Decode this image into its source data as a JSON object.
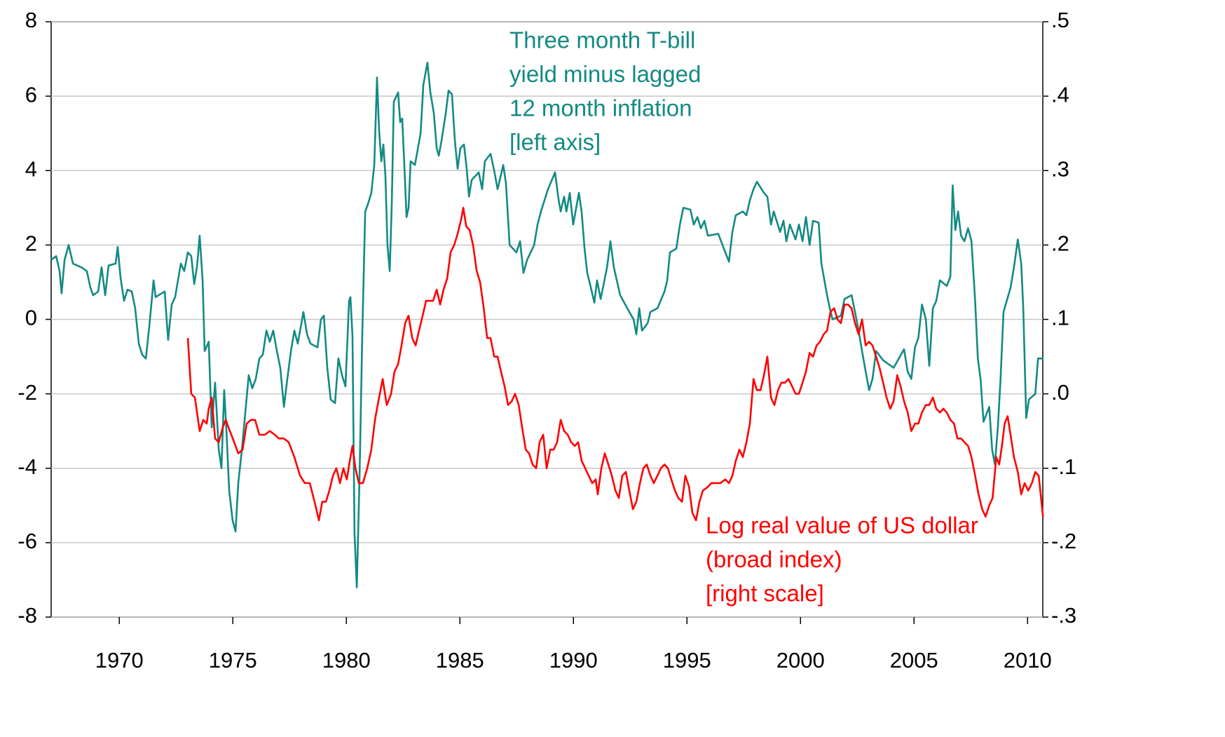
{
  "chart_data": {
    "type": "line",
    "xlim": [
      1967,
      2010.67
    ],
    "xticks": [
      1970,
      1975,
      1980,
      1985,
      1990,
      1995,
      2000,
      2005,
      2010
    ],
    "ylim": [
      -8,
      8
    ],
    "yticks": [
      -8,
      -6,
      -4,
      -2,
      0,
      2,
      4,
      6,
      8
    ],
    "y2lim": [
      -0.3,
      0.5
    ],
    "y2ticks": [
      {
        "value": -0.3,
        "label": "-.3"
      },
      {
        "value": -0.2,
        "label": "-.2"
      },
      {
        "value": -0.1,
        "label": "-.1"
      },
      {
        "value": 0.0,
        "label": ".0"
      },
      {
        "value": 0.1,
        "label": ".1"
      },
      {
        "value": 0.2,
        "label": ".2"
      },
      {
        "value": 0.3,
        "label": ".3"
      },
      {
        "value": 0.4,
        "label": ".4"
      },
      {
        "value": 0.5,
        "label": ".5"
      }
    ],
    "grid": true,
    "annotations": [
      {
        "lines": [
          "Three month T-bill",
          "yield minus lagged",
          "12 month inflation",
          "[left axis]"
        ],
        "color": "#138a84"
      },
      {
        "lines": [
          "Log real value of US dollar",
          "(broad index)",
          "[right scale]"
        ],
        "color": "#ff0000"
      }
    ],
    "series": [
      {
        "color": "#138a84",
        "axis": "y",
        "x": [
          1967.0,
          1967.22,
          1967.37,
          1967.46,
          1967.59,
          1967.77,
          1967.96,
          1968.33,
          1968.57,
          1968.73,
          1968.85,
          1969.07,
          1969.22,
          1969.38,
          1969.53,
          1969.84,
          1969.93,
          1970.06,
          1970.21,
          1970.36,
          1970.55,
          1970.7,
          1970.86,
          1971.01,
          1971.17,
          1971.32,
          1971.51,
          1971.6,
          1972.0,
          1972.15,
          1972.31,
          1972.46,
          1972.71,
          1972.86,
          1973.02,
          1973.17,
          1973.3,
          1973.42,
          1973.54,
          1973.67,
          1973.76,
          1973.94,
          1974.07,
          1974.22,
          1974.38,
          1974.5,
          1974.62,
          1974.72,
          1974.84,
          1974.99,
          1975.12,
          1975.24,
          1975.4,
          1975.55,
          1975.7,
          1975.86,
          1976.01,
          1976.17,
          1976.32,
          1976.48,
          1976.63,
          1976.78,
          1976.94,
          1977.09,
          1977.25,
          1977.4,
          1977.56,
          1977.71,
          1977.86,
          1978.11,
          1978.27,
          1978.42,
          1978.73,
          1978.88,
          1979.01,
          1979.16,
          1979.31,
          1979.5,
          1979.65,
          1979.81,
          1979.96,
          1980.12,
          1980.18,
          1980.27,
          1980.36,
          1980.46,
          1980.58,
          1980.7,
          1980.83,
          1980.95,
          1981.1,
          1981.23,
          1981.35,
          1981.44,
          1981.54,
          1981.63,
          1981.72,
          1981.81,
          1981.91,
          1982.0,
          1982.09,
          1982.28,
          1982.37,
          1982.46,
          1982.56,
          1982.65,
          1982.74,
          1982.83,
          1983.02,
          1983.27,
          1983.39,
          1983.57,
          1983.7,
          1983.85,
          1983.98,
          1984.07,
          1984.19,
          1984.38,
          1984.5,
          1984.65,
          1984.78,
          1984.9,
          1985.02,
          1985.18,
          1985.3,
          1985.4,
          1985.52,
          1985.83,
          1985.98,
          1986.1,
          1986.35,
          1986.51,
          1986.66,
          1986.91,
          1987.03,
          1987.19,
          1987.49,
          1987.65,
          1987.8,
          1987.96,
          1988.27,
          1988.42,
          1988.57,
          1988.88,
          1989.19,
          1989.35,
          1989.44,
          1989.59,
          1989.69,
          1989.84,
          1989.99,
          1990.24,
          1990.36,
          1990.49,
          1990.61,
          1990.77,
          1990.92,
          1991.04,
          1991.2,
          1991.48,
          1991.63,
          1991.78,
          1991.91,
          1992.06,
          1992.37,
          1992.65,
          1992.77,
          1992.9,
          1993.02,
          1993.27,
          1993.39,
          1993.7,
          1994.01,
          1994.13,
          1994.25,
          1994.53,
          1994.69,
          1994.84,
          1995.15,
          1995.3,
          1995.46,
          1995.61,
          1995.77,
          1995.92,
          1996.38,
          1996.69,
          1996.85,
          1997.0,
          1997.15,
          1997.46,
          1997.62,
          1997.77,
          1997.93,
          1998.08,
          1998.39,
          1998.54,
          1998.7,
          1998.82,
          1999.1,
          1999.25,
          1999.38,
          1999.53,
          1999.78,
          1999.93,
          2000.09,
          2000.24,
          2000.4,
          2000.55,
          2000.8,
          2000.92,
          2001.17,
          2001.29,
          2001.41,
          2001.78,
          2001.94,
          2002.25,
          2002.4,
          2002.56,
          2002.71,
          2002.87,
          2003.02,
          2003.17,
          2003.33,
          2003.64,
          2004.1,
          2004.56,
          2004.72,
          2004.88,
          2005.04,
          2005.19,
          2005.35,
          2005.52,
          2005.67,
          2005.83,
          2005.98,
          2006.14,
          2006.44,
          2006.6,
          2006.7,
          2006.82,
          2006.94,
          2007.07,
          2007.22,
          2007.38,
          2007.53,
          2007.69,
          2007.81,
          2007.93,
          2008.06,
          2008.31,
          2008.44,
          2008.56,
          2008.69,
          2008.81,
          2008.94,
          2009.25,
          2009.4,
          2009.57,
          2009.72,
          2009.81,
          2009.94,
          2010.06,
          2010.34,
          2010.46,
          2010.68
        ],
        "values": [
          1.6,
          1.7,
          1.3,
          0.7,
          1.6,
          2.0,
          1.5,
          1.4,
          1.3,
          0.85,
          0.65,
          0.75,
          1.4,
          0.65,
          1.45,
          1.5,
          1.95,
          1.1,
          0.5,
          0.8,
          0.75,
          0.3,
          -0.65,
          -0.95,
          -1.05,
          -0.2,
          1.05,
          0.6,
          0.75,
          -0.55,
          0.4,
          0.6,
          1.5,
          1.3,
          1.8,
          1.7,
          0.95,
          1.4,
          2.25,
          1.05,
          -0.85,
          -0.6,
          -2.9,
          -1.7,
          -3.5,
          -4.0,
          -1.9,
          -3.0,
          -4.6,
          -5.4,
          -5.7,
          -4.4,
          -3.5,
          -2.5,
          -1.5,
          -1.85,
          -1.6,
          -1.05,
          -0.95,
          -0.3,
          -0.6,
          -0.3,
          -0.85,
          -1.3,
          -2.35,
          -1.6,
          -0.85,
          -0.3,
          -0.65,
          0.2,
          -0.4,
          -0.65,
          -0.75,
          0.0,
          0.1,
          -1.3,
          -2.15,
          -2.25,
          -1.05,
          -1.5,
          -1.8,
          0.5,
          0.6,
          -0.45,
          -5.75,
          -7.2,
          -4.25,
          -0.45,
          2.9,
          3.1,
          3.4,
          4.15,
          6.5,
          5.1,
          4.25,
          4.7,
          3.85,
          2.0,
          1.3,
          3.1,
          5.85,
          6.1,
          5.3,
          5.4,
          4.05,
          2.75,
          3.0,
          4.25,
          4.15,
          5.0,
          6.3,
          6.9,
          6.1,
          5.55,
          4.6,
          4.4,
          4.8,
          5.55,
          6.15,
          6.05,
          4.8,
          4.05,
          4.6,
          4.7,
          4.05,
          3.3,
          3.75,
          3.95,
          3.5,
          4.25,
          4.45,
          4.0,
          3.5,
          4.15,
          3.65,
          2.0,
          1.8,
          2.1,
          1.25,
          1.6,
          2.0,
          2.55,
          2.9,
          3.5,
          3.95,
          3.2,
          2.9,
          3.3,
          2.9,
          3.4,
          2.55,
          3.4,
          2.9,
          1.9,
          1.25,
          0.85,
          0.45,
          1.05,
          0.55,
          1.4,
          2.1,
          1.4,
          1.05,
          0.65,
          0.3,
          0.0,
          -0.4,
          0.3,
          -0.3,
          -0.1,
          0.2,
          0.3,
          0.75,
          1.05,
          1.8,
          1.9,
          2.55,
          3.0,
          2.95,
          2.55,
          2.75,
          2.45,
          2.65,
          2.25,
          2.3,
          1.8,
          1.55,
          2.35,
          2.8,
          2.9,
          2.8,
          3.2,
          3.5,
          3.7,
          3.4,
          3.3,
          2.55,
          2.9,
          2.35,
          2.65,
          2.1,
          2.55,
          2.15,
          2.55,
          2.1,
          2.75,
          2.0,
          2.65,
          2.6,
          1.5,
          0.65,
          0.3,
          0.0,
          0.1,
          0.55,
          0.65,
          0.2,
          -0.3,
          -0.85,
          -1.4,
          -1.9,
          -1.6,
          -0.85,
          -1.1,
          -1.3,
          -0.8,
          -1.4,
          -1.6,
          -0.75,
          -0.5,
          0.4,
          0.0,
          -1.25,
          0.3,
          0.5,
          1.05,
          0.9,
          1.15,
          3.6,
          2.4,
          2.9,
          2.25,
          2.1,
          2.45,
          2.1,
          0.5,
          -1.05,
          -1.6,
          -2.75,
          -2.35,
          -3.5,
          -3.9,
          -2.9,
          -1.6,
          0.2,
          0.85,
          1.4,
          2.15,
          1.5,
          0.3,
          -2.65,
          -2.15,
          -2.0,
          -1.05,
          -1.05
        ]
      },
      {
        "color": "#ff0000",
        "axis": "y2",
        "x": [
          1973.02,
          1973.17,
          1973.33,
          1973.54,
          1973.7,
          1973.85,
          1973.94,
          1974.07,
          1974.22,
          1974.38,
          1974.56,
          1974.69,
          1974.87,
          1975.06,
          1975.24,
          1975.43,
          1975.61,
          1975.8,
          1975.98,
          1976.17,
          1976.41,
          1976.63,
          1976.85,
          1977.03,
          1977.25,
          1977.46,
          1977.71,
          1977.96,
          1978.17,
          1978.39,
          1978.64,
          1978.79,
          1978.94,
          1979.1,
          1979.25,
          1979.41,
          1979.56,
          1979.72,
          1979.87,
          1980.02,
          1980.18,
          1980.27,
          1980.4,
          1980.55,
          1980.73,
          1980.92,
          1981.1,
          1981.26,
          1981.41,
          1981.6,
          1981.78,
          1981.97,
          1982.12,
          1982.28,
          1982.43,
          1982.59,
          1982.74,
          1982.9,
          1983.05,
          1983.2,
          1983.36,
          1983.51,
          1983.67,
          1983.82,
          1983.98,
          1984.13,
          1984.28,
          1984.44,
          1984.59,
          1984.75,
          1984.9,
          1985.06,
          1985.15,
          1985.28,
          1985.43,
          1985.58,
          1985.74,
          1985.89,
          1986.05,
          1986.2,
          1986.35,
          1986.51,
          1986.66,
          1986.81,
          1986.97,
          1987.12,
          1987.28,
          1987.43,
          1987.59,
          1987.74,
          1987.9,
          1988.05,
          1988.2,
          1988.36,
          1988.51,
          1988.67,
          1988.82,
          1988.98,
          1989.13,
          1989.28,
          1989.44,
          1989.59,
          1989.75,
          1989.9,
          1990.06,
          1990.21,
          1990.36,
          1990.52,
          1990.67,
          1990.83,
          1990.98,
          1991.07,
          1991.23,
          1991.38,
          1991.54,
          1991.69,
          1991.85,
          1992.0,
          1992.15,
          1992.31,
          1992.46,
          1992.62,
          1992.77,
          1992.93,
          1993.08,
          1993.23,
          1993.39,
          1993.54,
          1993.7,
          1993.85,
          1994.01,
          1994.16,
          1994.31,
          1994.47,
          1994.62,
          1994.78,
          1994.93,
          1995.09,
          1995.24,
          1995.4,
          1995.55,
          1995.7,
          1995.92,
          1996.07,
          1996.23,
          1996.47,
          1996.69,
          1996.85,
          1997.0,
          1997.15,
          1997.31,
          1997.46,
          1997.62,
          1997.77,
          1997.93,
          1998.08,
          1998.24,
          1998.39,
          1998.54,
          1998.7,
          1998.85,
          1999.01,
          1999.16,
          1999.32,
          1999.47,
          1999.63,
          1999.78,
          1999.93,
          2000.09,
          2000.24,
          2000.4,
          2000.55,
          2000.71,
          2000.86,
          2001.02,
          2001.17,
          2001.32,
          2001.48,
          2001.63,
          2001.78,
          2001.94,
          2002.09,
          2002.25,
          2002.4,
          2002.56,
          2002.71,
          2002.87,
          2003.02,
          2003.17,
          2003.33,
          2003.48,
          2003.64,
          2003.79,
          2003.95,
          2004.1,
          2004.26,
          2004.41,
          2004.56,
          2004.72,
          2004.88,
          2005.04,
          2005.19,
          2005.35,
          2005.52,
          2005.67,
          2005.83,
          2005.98,
          2006.14,
          2006.29,
          2006.44,
          2006.6,
          2006.76,
          2006.91,
          2007.07,
          2007.22,
          2007.38,
          2007.53,
          2007.69,
          2007.84,
          2008.0,
          2008.15,
          2008.31,
          2008.46,
          2008.62,
          2008.75,
          2008.87,
          2008.99,
          2009.12,
          2009.25,
          2009.4,
          2009.57,
          2009.72,
          2009.87,
          2010.03,
          2010.19,
          2010.34,
          2010.49,
          2010.68
        ],
        "values": [
          0.075,
          0.0,
          -0.005,
          -0.05,
          -0.035,
          -0.04,
          -0.02,
          -0.005,
          -0.06,
          -0.065,
          -0.045,
          -0.035,
          -0.05,
          -0.065,
          -0.08,
          -0.075,
          -0.04,
          -0.035,
          -0.035,
          -0.055,
          -0.055,
          -0.05,
          -0.055,
          -0.06,
          -0.06,
          -0.065,
          -0.085,
          -0.11,
          -0.12,
          -0.12,
          -0.15,
          -0.17,
          -0.145,
          -0.145,
          -0.13,
          -0.11,
          -0.1,
          -0.12,
          -0.1,
          -0.115,
          -0.085,
          -0.07,
          -0.1,
          -0.12,
          -0.12,
          -0.1,
          -0.075,
          -0.035,
          -0.01,
          0.02,
          -0.015,
          0.0,
          0.03,
          0.04,
          0.065,
          0.095,
          0.105,
          0.075,
          0.065,
          0.085,
          0.105,
          0.125,
          0.125,
          0.125,
          0.14,
          0.12,
          0.14,
          0.155,
          0.19,
          0.2,
          0.215,
          0.235,
          0.25,
          0.225,
          0.22,
          0.2,
          0.165,
          0.15,
          0.115,
          0.075,
          0.075,
          0.05,
          0.05,
          0.03,
          0.01,
          -0.015,
          -0.01,
          0.0,
          -0.015,
          -0.045,
          -0.075,
          -0.08,
          -0.095,
          -0.1,
          -0.065,
          -0.055,
          -0.1,
          -0.075,
          -0.075,
          -0.065,
          -0.035,
          -0.05,
          -0.055,
          -0.065,
          -0.07,
          -0.065,
          -0.09,
          -0.1,
          -0.11,
          -0.12,
          -0.115,
          -0.135,
          -0.1,
          -0.08,
          -0.095,
          -0.11,
          -0.13,
          -0.14,
          -0.11,
          -0.105,
          -0.13,
          -0.155,
          -0.145,
          -0.12,
          -0.1,
          -0.095,
          -0.11,
          -0.12,
          -0.11,
          -0.1,
          -0.095,
          -0.1,
          -0.115,
          -0.13,
          -0.14,
          -0.145,
          -0.11,
          -0.125,
          -0.16,
          -0.17,
          -0.145,
          -0.13,
          -0.125,
          -0.12,
          -0.12,
          -0.12,
          -0.115,
          -0.12,
          -0.11,
          -0.09,
          -0.075,
          -0.085,
          -0.065,
          -0.04,
          0.02,
          0.005,
          0.005,
          0.025,
          0.05,
          -0.005,
          -0.015,
          0.005,
          0.015,
          0.015,
          0.02,
          0.01,
          0.0,
          0.0,
          0.015,
          0.03,
          0.055,
          0.05,
          0.065,
          0.07,
          0.08,
          0.085,
          0.11,
          0.115,
          0.1,
          0.095,
          0.12,
          0.12,
          0.115,
          0.095,
          0.08,
          0.1,
          0.065,
          0.07,
          0.065,
          0.05,
          0.035,
          0.015,
          -0.005,
          -0.02,
          -0.01,
          0.025,
          0.01,
          -0.01,
          -0.025,
          -0.05,
          -0.04,
          -0.04,
          -0.025,
          -0.015,
          -0.015,
          -0.005,
          -0.02,
          -0.025,
          -0.02,
          -0.025,
          -0.035,
          -0.04,
          -0.06,
          -0.06,
          -0.065,
          -0.07,
          -0.085,
          -0.11,
          -0.135,
          -0.155,
          -0.165,
          -0.15,
          -0.14,
          -0.085,
          -0.095,
          -0.07,
          -0.04,
          -0.03,
          -0.055,
          -0.085,
          -0.105,
          -0.135,
          -0.12,
          -0.13,
          -0.12,
          -0.105,
          -0.11,
          -0.165
        ]
      }
    ]
  }
}
